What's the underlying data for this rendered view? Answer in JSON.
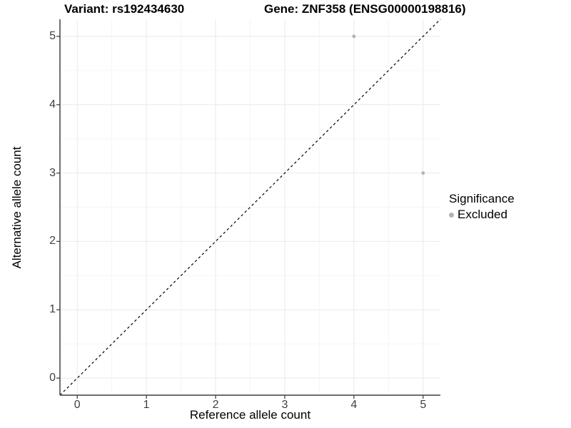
{
  "chart_data": {
    "type": "scatter",
    "title_left": "Variant: rs192434630",
    "title_right": "Gene: ZNF358 (ENSG00000198816)",
    "xlabel": "Reference allele count",
    "ylabel": "Alternative allele count",
    "xlim": [
      -0.25,
      5.25
    ],
    "ylim": [
      -0.25,
      5.25
    ],
    "xticks": [
      0,
      1,
      2,
      3,
      4,
      5
    ],
    "yticks": [
      0,
      1,
      2,
      3,
      4,
      5
    ],
    "grid": "major and minor, light gray on white",
    "legend_position": "right",
    "legend": {
      "title": "Significance",
      "items": [
        {
          "label": "Excluded",
          "color": "#b2b2b2"
        }
      ]
    },
    "series": [
      {
        "name": "Excluded",
        "color": "#b2b2b2",
        "points": [
          {
            "x": 4,
            "y": 5
          },
          {
            "x": 5,
            "y": 3
          }
        ]
      }
    ],
    "reference_line": {
      "kind": "identity y=x",
      "style": "dashed",
      "color": "#000000"
    },
    "style": {
      "background": "#ffffff",
      "grid_major": "#e9e9e9",
      "grid_minor": "#f5f5f5",
      "axis_line": "#595959",
      "tick_mark": "#454545",
      "tick_label_color": "#404040",
      "point_radius": 2.4
    }
  }
}
